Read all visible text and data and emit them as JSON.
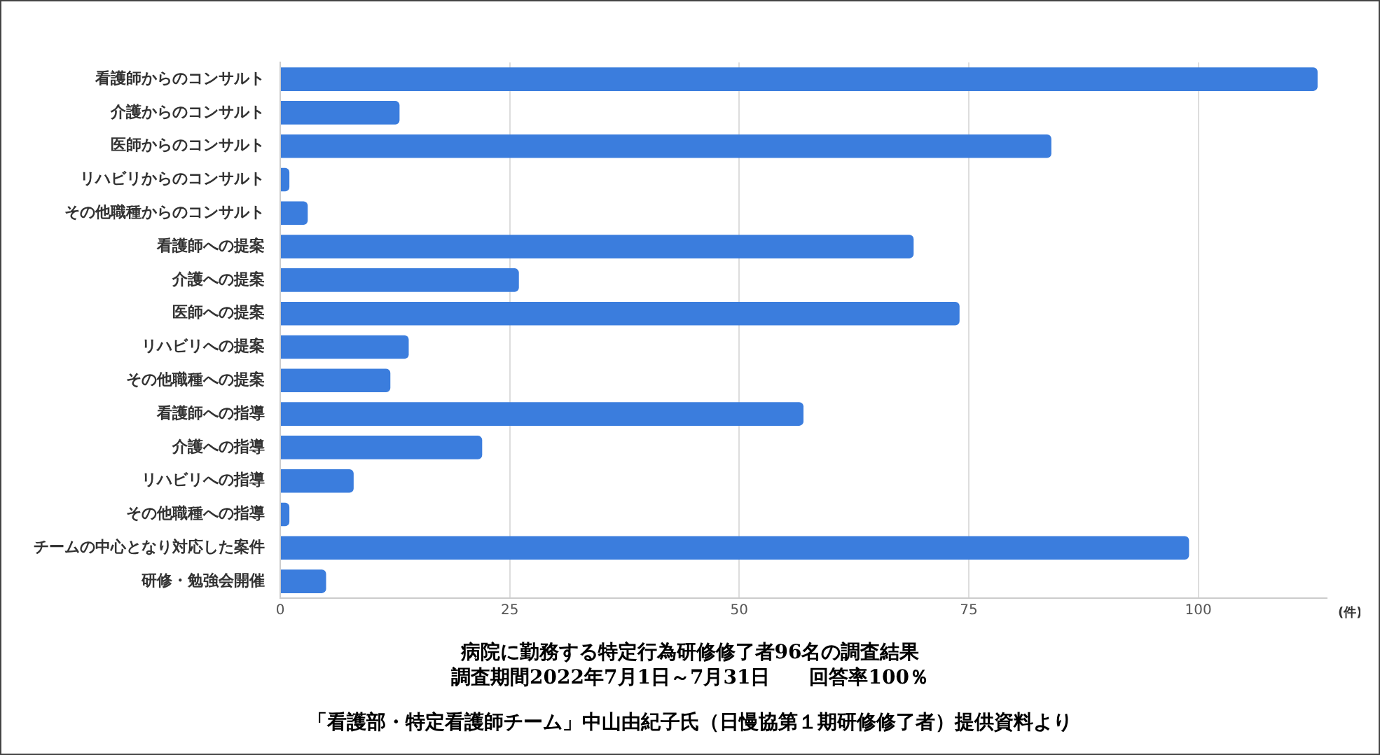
{
  "chart_data": {
    "type": "bar",
    "orientation": "horizontal",
    "categories": [
      "看護師からのコンサルト",
      "介護からのコンサルト",
      "医師からのコンサルト",
      "リハビリからのコンサルト",
      "その他職種からのコンサルト",
      "看護師への提案",
      "介護への提案",
      "医師への提案",
      "リハビリへの提案",
      "その他職種への提案",
      "看護師への指導",
      "介護への指導",
      "リハビリへの指導",
      "その他職種への指導",
      "チームの中心となり対応した案件",
      "研修・勉強会開催"
    ],
    "values": [
      113,
      13,
      84,
      1,
      3,
      69,
      26,
      74,
      14,
      12,
      57,
      22,
      8,
      1,
      99,
      5
    ],
    "color": "#3b7ddd",
    "xlim": [
      0,
      114
    ],
    "xticks": [
      0,
      25,
      50,
      75,
      100
    ],
    "grid": "x",
    "xlabel": "(件)",
    "annotations": [
      "病院に勤務する特定行為研修修了者96名の調査結果",
      "調査期間2022年7月1日～7月31日　　回答率100％",
      "「看護部・特定看護師チーム」中山由紀子氏（日慢協第１期研修修了者）提供資料より"
    ]
  }
}
